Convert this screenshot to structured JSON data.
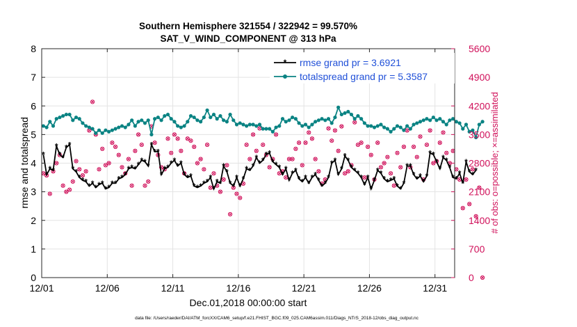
{
  "chart_data": {
    "type": "line",
    "title": "Southern Hemisphere 321554 / 322942 = 99.570%",
    "subtitle": "SAT_V_WIND_COMPONENT @ 313 hPa",
    "xlabel": "Dec.01,2018 00:00:00 start",
    "ylabel": "rmse and totalspread",
    "ylabel_right": "# of obs: o=possible; ×=assimilated",
    "footer": "data file: /Users/raeder/DAI/ATM_forcXX/CAM6_setup/f.e21.FHIST_BGC.f09_025.CAM6assim.011/Diags_NTrS_2018-12/obs_diag_output.nc",
    "x_range_days": [
      0,
      31.5
    ],
    "ylim": [
      0,
      8
    ],
    "ylim_right": [
      0,
      5600
    ],
    "x_ticks": [
      {
        "day": 0,
        "label": "12/01"
      },
      {
        "day": 5,
        "label": "12/06"
      },
      {
        "day": 10,
        "label": "12/11"
      },
      {
        "day": 15,
        "label": "12/16"
      },
      {
        "day": 20,
        "label": "12/21"
      },
      {
        "day": 25,
        "label": "12/26"
      },
      {
        "day": 30,
        "label": "12/31"
      }
    ],
    "y_ticks": [
      "0",
      "1",
      "2",
      "3",
      "4",
      "5",
      "6",
      "7",
      "8"
    ],
    "y_ticks_right": [
      "0",
      "700",
      "1400",
      "2100",
      "2800",
      "3500",
      "4200",
      "4900",
      "5600"
    ],
    "grid": true,
    "legend_position": "top-right",
    "x_step_days": 0.25,
    "series": [
      {
        "name": "rmse grand pr = 3.6921",
        "color": "#000000",
        "axis": "left",
        "values": [
          4.3,
          3.6,
          3.8,
          3.75,
          4.6,
          4.3,
          4.2,
          4.55,
          4.65,
          3.8,
          3.7,
          3.5,
          3.4,
          3.35,
          3.2,
          3.3,
          3.15,
          3.25,
          3.3,
          3.1,
          3.15,
          3.3,
          3.3,
          3.45,
          3.5,
          3.6,
          3.8,
          3.85,
          3.8,
          3.95,
          4.1,
          4.05,
          3.9,
          4.65,
          4.4,
          4.4,
          3.6,
          3.8,
          3.85,
          4.0,
          4.1,
          3.9,
          4.0,
          3.6,
          3.5,
          3.55,
          3.2,
          3.15,
          3.2,
          3.3,
          3.35,
          3.5,
          3.1,
          3.35,
          3.3,
          3.9,
          3.7,
          3.3,
          3.2,
          3.5,
          3.2,
          3.45,
          3.8,
          3.75,
          3.9,
          4.2,
          4.0,
          4.1,
          4.3,
          4.35,
          4.05,
          3.95,
          3.85,
          3.6,
          3.8,
          3.4,
          3.65,
          3.75,
          3.45,
          3.35,
          3.5,
          3.3,
          3.5,
          3.6,
          3.4,
          3.2,
          3.3,
          3.5,
          4.0,
          4.1,
          3.6,
          3.8,
          4.25,
          4.1,
          3.85,
          3.75,
          3.65,
          3.5,
          3.25,
          3.5,
          3.1,
          3.4,
          3.75,
          3.65,
          3.45,
          3.35,
          3.4,
          3.45,
          3.2,
          3.1,
          3.3,
          3.9,
          3.9,
          3.6,
          3.45,
          3.55,
          3.35,
          3.55,
          4.35,
          4.3,
          4.05,
          3.8,
          4.2,
          4.1,
          3.85,
          3.5,
          3.45,
          3.65,
          3.3,
          4.05,
          3.7,
          3.6,
          3.75
        ]
      },
      {
        "name": "totalspread grand pr = 5.3587",
        "color": "#0a8383",
        "axis": "left",
        "values": [
          5.3,
          5.25,
          5.45,
          5.3,
          5.55,
          5.6,
          5.65,
          5.7,
          5.7,
          5.5,
          5.6,
          5.55,
          5.4,
          5.3,
          5.25,
          5.2,
          5.05,
          5.15,
          5.05,
          5.15,
          5.1,
          5.15,
          5.2,
          5.25,
          5.3,
          5.25,
          5.35,
          5.5,
          5.3,
          5.45,
          5.5,
          5.4,
          5.5,
          5.0,
          5.55,
          5.6,
          5.5,
          5.65,
          5.7,
          5.55,
          5.45,
          5.3,
          5.25,
          5.3,
          5.45,
          5.65,
          5.6,
          5.5,
          5.45,
          5.6,
          5.85,
          5.6,
          5.7,
          5.55,
          5.65,
          5.5,
          5.45,
          5.7,
          5.5,
          5.35,
          5.4,
          5.35,
          5.3,
          5.35,
          5.35,
          5.3,
          5.35,
          5.2,
          5.2,
          5.2,
          5.1,
          5.25,
          5.3,
          5.55,
          5.45,
          5.5,
          5.6,
          5.55,
          5.4,
          5.3,
          5.35,
          5.25,
          5.35,
          5.45,
          5.5,
          5.55,
          5.5,
          5.55,
          5.4,
          5.6,
          5.95,
          5.7,
          5.75,
          5.8,
          5.7,
          5.55,
          5.65,
          5.55,
          5.4,
          5.3,
          5.3,
          5.25,
          5.3,
          5.35,
          5.25,
          5.2,
          5.1,
          5.2,
          5.3,
          5.25,
          5.15,
          5.3,
          5.2,
          5.35,
          5.4,
          5.45,
          5.5,
          5.55,
          5.5,
          5.6,
          5.5,
          5.55,
          5.45,
          5.35,
          5.5,
          5.55,
          5.45,
          5.4,
          5.2,
          5.35,
          5.1,
          5.15,
          4.9,
          5.35,
          5.45
        ]
      }
    ],
    "obs_series": [
      {
        "name": "assimilated",
        "color": "#d0105a",
        "axis": "right",
        "values": [
          2550,
          2500,
          2050,
          2600,
          2800,
          3000,
          2250,
          2100,
          2150,
          2350,
          2850,
          2650,
          2500,
          2600,
          3600,
          4300,
          3500,
          2650,
          3150,
          2750,
          2800,
          3300,
          3200,
          3000,
          2700,
          2550,
          2900,
          2250,
          3100,
          3500,
          3250,
          2250,
          2350,
          3700,
          3300,
          3000,
          2700,
          2650,
          3400,
          3050,
          3500,
          3400,
          3100,
          2550,
          3400,
          3350,
          3200,
          2800,
          2900,
          2650,
          3250,
          2200,
          2550,
          2250,
          2100,
          2400,
          2750,
          1550,
          2200,
          2050,
          1950,
          2300,
          3250,
          2900,
          3500,
          3100,
          3650,
          3250,
          3000,
          2700,
          2900,
          3500,
          2550,
          2600,
          2450,
          2900,
          2900,
          3150,
          3300,
          2750,
          3300,
          3550,
          3400,
          2900,
          2600,
          2300,
          2400,
          3650,
          3350,
          3600,
          3100,
          3700,
          2550,
          2600,
          2750,
          3800,
          3250,
          3300,
          2450,
          3200,
          3000,
          2400,
          3300,
          2700,
          2800,
          2950,
          2550,
          2250,
          3050,
          2700,
          3200,
          3600,
          2700,
          3200,
          2950,
          3450,
          2400,
          3250,
          3600,
          2800,
          2850,
          3300,
          3550,
          3050,
          2800,
          3100,
          2650,
          2400,
          1700,
          2400,
          1800,
          2650,
          1500,
          2200,
          0
        ]
      }
    ]
  }
}
